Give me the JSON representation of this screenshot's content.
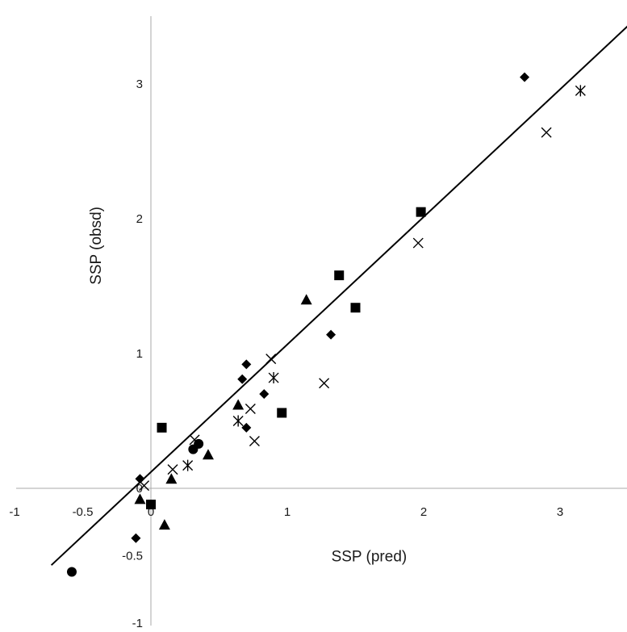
{
  "chart_data": {
    "type": "scatter",
    "title": "",
    "xlabel": "SSP (pred)",
    "ylabel": "SSP (obsd)",
    "xlim": [
      -1,
      3.5
    ],
    "ylim": [
      -1,
      3.5
    ],
    "x_ticks": [
      -1,
      -0.5,
      0,
      1,
      2,
      3
    ],
    "x_tick_labels": [
      "-1",
      "-0.5",
      "0",
      "1",
      "2",
      "3"
    ],
    "y_ticks": [
      -1,
      -0.5,
      0,
      1,
      2,
      3
    ],
    "y_tick_labels": [
      "-1",
      "-0.5",
      "0",
      "1",
      "2",
      "3"
    ],
    "grid": false,
    "legend": "none",
    "colors": {
      "marker": "#000000",
      "line": "#000000",
      "axis": "#aaaaaa"
    },
    "fit_line": {
      "x": [
        -0.73,
        3.55
      ],
      "y": [
        -0.57,
        3.48
      ]
    },
    "series": [
      {
        "marker": "diamond",
        "x": [
          -0.08,
          -0.11,
          0.67,
          0.7,
          0.7,
          0.83,
          1.32,
          2.74
        ],
        "y": [
          0.07,
          -0.37,
          0.81,
          0.92,
          0.45,
          0.7,
          1.14,
          3.05
        ]
      },
      {
        "marker": "square",
        "x": [
          0.08,
          0.0,
          0.96,
          1.38,
          1.5,
          1.98
        ],
        "y": [
          0.45,
          -0.12,
          0.56,
          1.58,
          1.34,
          2.05
        ]
      },
      {
        "marker": "triangle",
        "x": [
          -0.08,
          0.1,
          0.15,
          0.42,
          0.64,
          1.14
        ],
        "y": [
          -0.08,
          -0.27,
          0.07,
          0.25,
          0.62,
          1.4
        ]
      },
      {
        "marker": "x",
        "x": [
          -0.05,
          0.16,
          0.32,
          0.73,
          0.76,
          0.88,
          1.27,
          1.96,
          2.9
        ],
        "y": [
          0.02,
          0.14,
          0.36,
          0.59,
          0.35,
          0.96,
          0.78,
          1.82,
          2.64
        ]
      },
      {
        "marker": "asterisk",
        "x": [
          0.27,
          0.64,
          0.9,
          3.15
        ],
        "y": [
          0.17,
          0.5,
          0.82,
          2.95
        ]
      },
      {
        "marker": "circle",
        "x": [
          -0.58,
          0.31,
          0.35
        ],
        "y": [
          -0.62,
          0.29,
          0.33
        ]
      }
    ]
  }
}
